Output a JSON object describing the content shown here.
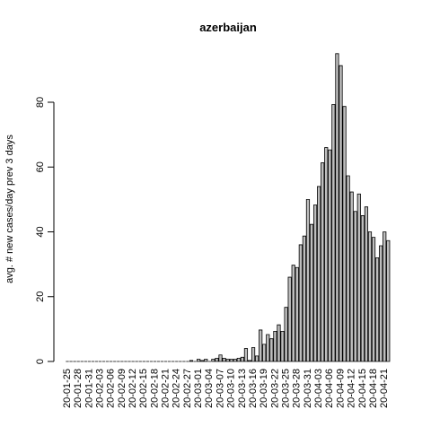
{
  "chart_data": {
    "type": "bar",
    "title": "azerbaijan",
    "y_label": "avg. # new cases/day prev  3  days",
    "categories": [
      "20-01-25",
      null,
      null,
      "20-01-28",
      null,
      null,
      "20-01-31",
      null,
      null,
      "20-02-03",
      null,
      null,
      "20-02-06",
      null,
      null,
      "20-02-09",
      null,
      null,
      "20-02-12",
      null,
      null,
      "20-02-15",
      null,
      null,
      "20-02-18",
      null,
      null,
      "20-02-21",
      null,
      null,
      "20-02-24",
      null,
      null,
      "20-02-27",
      null,
      null,
      "20-03-01",
      null,
      null,
      "20-03-04",
      null,
      null,
      "20-03-07",
      null,
      null,
      "20-03-10",
      null,
      null,
      "20-03-13",
      null,
      null,
      "20-03-16",
      null,
      null,
      "20-03-19",
      null,
      null,
      "20-03-22",
      null,
      null,
      "20-03-25",
      null,
      null,
      "20-03-28",
      null,
      null,
      "20-03-31",
      null,
      null,
      "20-04-03",
      null,
      null,
      "20-04-06",
      null,
      null,
      "20-04-09",
      null,
      null,
      "20-04-12",
      null,
      null,
      "20-04-15",
      null,
      null,
      "20-04-18",
      null,
      null,
      "20-04-21",
      null
    ],
    "values": [
      0,
      0,
      0,
      0,
      0,
      0,
      0,
      0,
      0,
      0,
      0,
      0,
      0,
      0,
      0,
      0,
      0,
      0,
      0,
      0,
      0,
      0,
      0,
      0,
      0,
      0,
      0,
      0,
      0,
      0,
      0,
      0,
      0,
      0,
      0.3,
      0,
      0.7,
      0.3,
      0.7,
      0,
      0.7,
      1,
      2,
      1,
      0.7,
      0.7,
      0.7,
      1,
      1.3,
      4,
      0.3,
      4.3,
      1.7,
      9.7,
      5.3,
      8.3,
      7,
      9.3,
      11.3,
      9.3,
      16.7,
      26,
      29.7,
      29,
      36,
      38.7,
      50,
      42.3,
      48.3,
      54,
      61.3,
      66,
      65.3,
      79.3,
      95,
      91.3,
      78.7,
      57.3,
      52.3,
      46.3,
      51.7,
      45,
      47.7,
      40,
      38.3,
      32,
      35.7,
      40,
      37.3
    ],
    "color": "#bebebe",
    "ylim": [
      0,
      95
    ],
    "yticks": [
      0,
      20,
      40,
      60,
      80
    ]
  }
}
